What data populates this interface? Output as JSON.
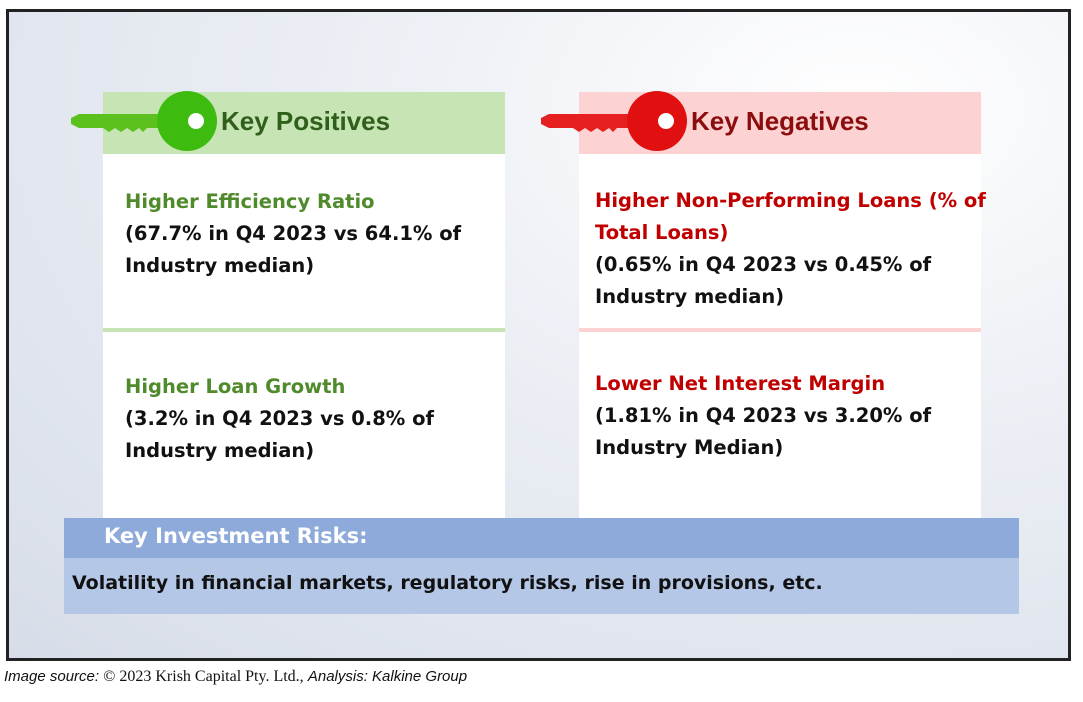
{
  "positives": {
    "title": "Key Positives",
    "color": "#4f8a2b",
    "items": [
      {
        "head": "Higher Efficiency Ratio",
        "detail_line1": "(67.7% in Q4 2023 vs 64.1% of",
        "detail_line2": "Industry median)"
      },
      {
        "head": "Higher Loan Growth",
        "detail_line1": "(3.2% in Q4 2023 vs 0.8% of",
        "detail_line2": "Industry median)"
      }
    ]
  },
  "negatives": {
    "title": "Key Negatives",
    "color": "#c00000",
    "items": [
      {
        "head_line1": "Higher Non-Performing Loans (% of",
        "head_line2": "Total Loans)",
        "detail_line1": "(0.65% in Q4 2023 vs 0.45% of",
        "detail_line2": "Industry median)"
      },
      {
        "head": "Lower Net Interest Margin",
        "detail_line1": "(1.81% in Q4 2023 vs 3.20% of",
        "detail_line2": "Industry Median)"
      }
    ]
  },
  "risks": {
    "title": "Key Investment Risks:",
    "text": "Volatility in financial markets, regulatory risks, rise in provisions, etc."
  },
  "source": {
    "label": "Image source:",
    "copyright": "© 2023 Krish Capital Pty. Ltd.,",
    "analysis": "Analysis: Kalkine Group"
  },
  "icons": {
    "positives": "green-key-icon",
    "negatives": "red-key-icon"
  }
}
